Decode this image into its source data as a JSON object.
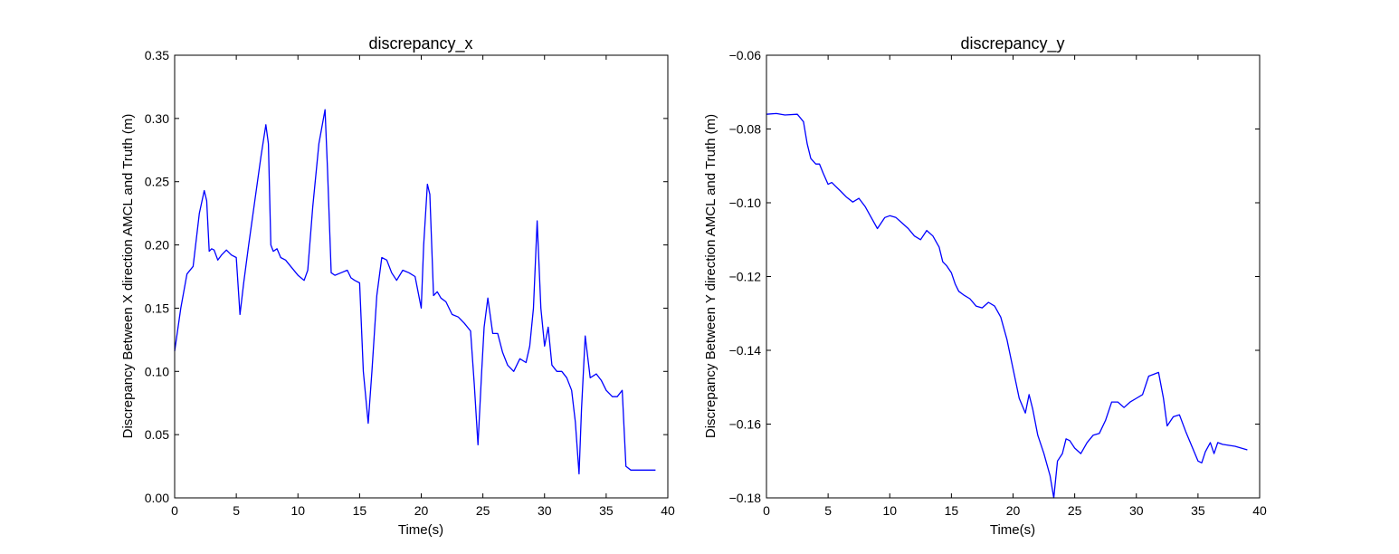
{
  "chart_data": [
    {
      "type": "line",
      "title": "discrepancy_x",
      "xlabel": "Time(s)",
      "ylabel": "Discrepancy Between X direction AMCL and Truth (m)",
      "xlim": [
        0,
        40
      ],
      "ylim": [
        0.0,
        0.35
      ],
      "xticks": [
        0,
        5,
        10,
        15,
        20,
        25,
        30,
        35,
        40
      ],
      "xtick_labels": [
        "0",
        "5",
        "10",
        "15",
        "20",
        "25",
        "30",
        "35",
        "40"
      ],
      "yticks": [
        0.0,
        0.05,
        0.1,
        0.15,
        0.2,
        0.25,
        0.3,
        0.35
      ],
      "ytick_labels": [
        "0.00",
        "0.05",
        "0.10",
        "0.15",
        "0.20",
        "0.25",
        "0.30",
        "0.35"
      ],
      "grid": false,
      "color": "#0000ff",
      "series": [
        {
          "x": [
            0,
            0.5,
            1.0,
            1.5,
            2.0,
            2.4,
            2.6,
            2.8,
            3.0,
            3.2,
            3.5,
            3.8,
            4.2,
            4.6,
            5.0,
            5.3,
            5.6,
            6.0,
            6.5,
            7.0,
            7.4,
            7.6,
            7.8,
            8.0,
            8.3,
            8.6,
            9.0,
            9.5,
            10.0,
            10.5,
            10.8,
            11.2,
            11.7,
            12.2,
            12.4,
            12.7,
            13.0,
            13.5,
            14.0,
            14.3,
            14.6,
            15.0,
            15.3,
            15.7,
            16.0,
            16.4,
            16.8,
            17.2,
            17.6,
            18.0,
            18.5,
            19.0,
            19.5,
            20.0,
            20.2,
            20.5,
            20.7,
            21.0,
            21.3,
            21.6,
            22.0,
            22.5,
            23.0,
            23.5,
            24.0,
            24.3,
            24.6,
            24.9,
            25.1,
            25.4,
            25.8,
            26.2,
            26.6,
            27.0,
            27.5,
            28.0,
            28.5,
            28.8,
            29.1,
            29.4,
            29.7,
            30.0,
            30.3,
            30.6,
            31.0,
            31.4,
            31.8,
            32.2,
            32.5,
            32.8,
            33.0,
            33.3,
            33.7,
            34.2,
            34.6,
            35.0,
            35.5,
            35.9,
            36.3,
            36.6,
            37.0,
            38.0,
            39.0
          ],
          "y": [
            0.116,
            0.15,
            0.177,
            0.183,
            0.225,
            0.243,
            0.235,
            0.195,
            0.197,
            0.196,
            0.188,
            0.192,
            0.196,
            0.192,
            0.19,
            0.145,
            0.17,
            0.2,
            0.235,
            0.27,
            0.295,
            0.28,
            0.2,
            0.195,
            0.197,
            0.19,
            0.188,
            0.182,
            0.176,
            0.172,
            0.18,
            0.23,
            0.28,
            0.307,
            0.26,
            0.178,
            0.176,
            0.178,
            0.18,
            0.174,
            0.172,
            0.17,
            0.1,
            0.059,
            0.1,
            0.16,
            0.19,
            0.188,
            0.178,
            0.172,
            0.18,
            0.178,
            0.175,
            0.15,
            0.2,
            0.248,
            0.24,
            0.16,
            0.163,
            0.158,
            0.155,
            0.145,
            0.143,
            0.138,
            0.132,
            0.09,
            0.042,
            0.1,
            0.135,
            0.158,
            0.13,
            0.13,
            0.115,
            0.105,
            0.1,
            0.11,
            0.107,
            0.12,
            0.15,
            0.219,
            0.15,
            0.12,
            0.135,
            0.105,
            0.1,
            0.1,
            0.095,
            0.085,
            0.06,
            0.019,
            0.07,
            0.128,
            0.095,
            0.098,
            0.093,
            0.085,
            0.08,
            0.08,
            0.085,
            0.025,
            0.022,
            0.022,
            0.022
          ]
        }
      ]
    },
    {
      "type": "line",
      "title": "discrepancy_y",
      "xlabel": "Time(s)",
      "ylabel": "Discrepancy Between Y direction AMCL and Truth (m)",
      "xlim": [
        0,
        40
      ],
      "ylim": [
        -0.18,
        -0.06
      ],
      "xticks": [
        0,
        5,
        10,
        15,
        20,
        25,
        30,
        35,
        40
      ],
      "xtick_labels": [
        "0",
        "5",
        "10",
        "15",
        "20",
        "25",
        "30",
        "35",
        "40"
      ],
      "yticks": [
        -0.18,
        -0.16,
        -0.14,
        -0.12,
        -0.1,
        -0.08,
        -0.06
      ],
      "ytick_labels": [
        "−0.18",
        "−0.16",
        "−0.14",
        "−0.12",
        "−0.10",
        "−0.08",
        "−0.06"
      ],
      "grid": false,
      "color": "#0000ff",
      "series": [
        {
          "x": [
            0,
            0.8,
            1.5,
            2.5,
            3.0,
            3.3,
            3.6,
            4.0,
            4.3,
            4.6,
            5.0,
            5.3,
            5.6,
            6.0,
            6.5,
            7.0,
            7.5,
            8.0,
            8.5,
            9.0,
            9.3,
            9.6,
            10.0,
            10.5,
            11.0,
            11.5,
            12.0,
            12.5,
            13.0,
            13.5,
            14.0,
            14.3,
            14.6,
            15.0,
            15.3,
            15.6,
            16.0,
            16.5,
            17.0,
            17.5,
            18.0,
            18.5,
            19.0,
            19.5,
            20.0,
            20.5,
            21.0,
            21.3,
            21.6,
            22.0,
            22.5,
            23.0,
            23.3,
            23.6,
            24.0,
            24.3,
            24.6,
            25.0,
            25.5,
            26.0,
            26.5,
            27.0,
            27.5,
            28.0,
            28.5,
            29.0,
            29.5,
            30.0,
            30.5,
            31.0,
            31.4,
            31.8,
            32.2,
            32.5,
            33.0,
            33.5,
            34.0,
            34.5,
            35.0,
            35.3,
            35.6,
            36.0,
            36.3,
            36.6,
            37.0,
            38.0,
            39.0
          ],
          "y": [
            -0.076,
            -0.0758,
            -0.0762,
            -0.076,
            -0.078,
            -0.084,
            -0.088,
            -0.0895,
            -0.0895,
            -0.092,
            -0.095,
            -0.0945,
            -0.0955,
            -0.0968,
            -0.0985,
            -0.0998,
            -0.0988,
            -0.101,
            -0.104,
            -0.107,
            -0.1055,
            -0.104,
            -0.1035,
            -0.104,
            -0.1055,
            -0.107,
            -0.109,
            -0.11,
            -0.1075,
            -0.109,
            -0.112,
            -0.116,
            -0.117,
            -0.119,
            -0.122,
            -0.124,
            -0.125,
            -0.126,
            -0.128,
            -0.1285,
            -0.127,
            -0.128,
            -0.131,
            -0.137,
            -0.145,
            -0.153,
            -0.157,
            -0.152,
            -0.156,
            -0.163,
            -0.168,
            -0.174,
            -0.18,
            -0.17,
            -0.168,
            -0.164,
            -0.1645,
            -0.1665,
            -0.168,
            -0.165,
            -0.163,
            -0.1625,
            -0.159,
            -0.154,
            -0.154,
            -0.1555,
            -0.154,
            -0.153,
            -0.152,
            -0.147,
            -0.1465,
            -0.146,
            -0.153,
            -0.1605,
            -0.158,
            -0.1575,
            -0.162,
            -0.166,
            -0.17,
            -0.1705,
            -0.1675,
            -0.165,
            -0.168,
            -0.165,
            -0.1655,
            -0.166,
            -0.167
          ]
        }
      ]
    }
  ]
}
